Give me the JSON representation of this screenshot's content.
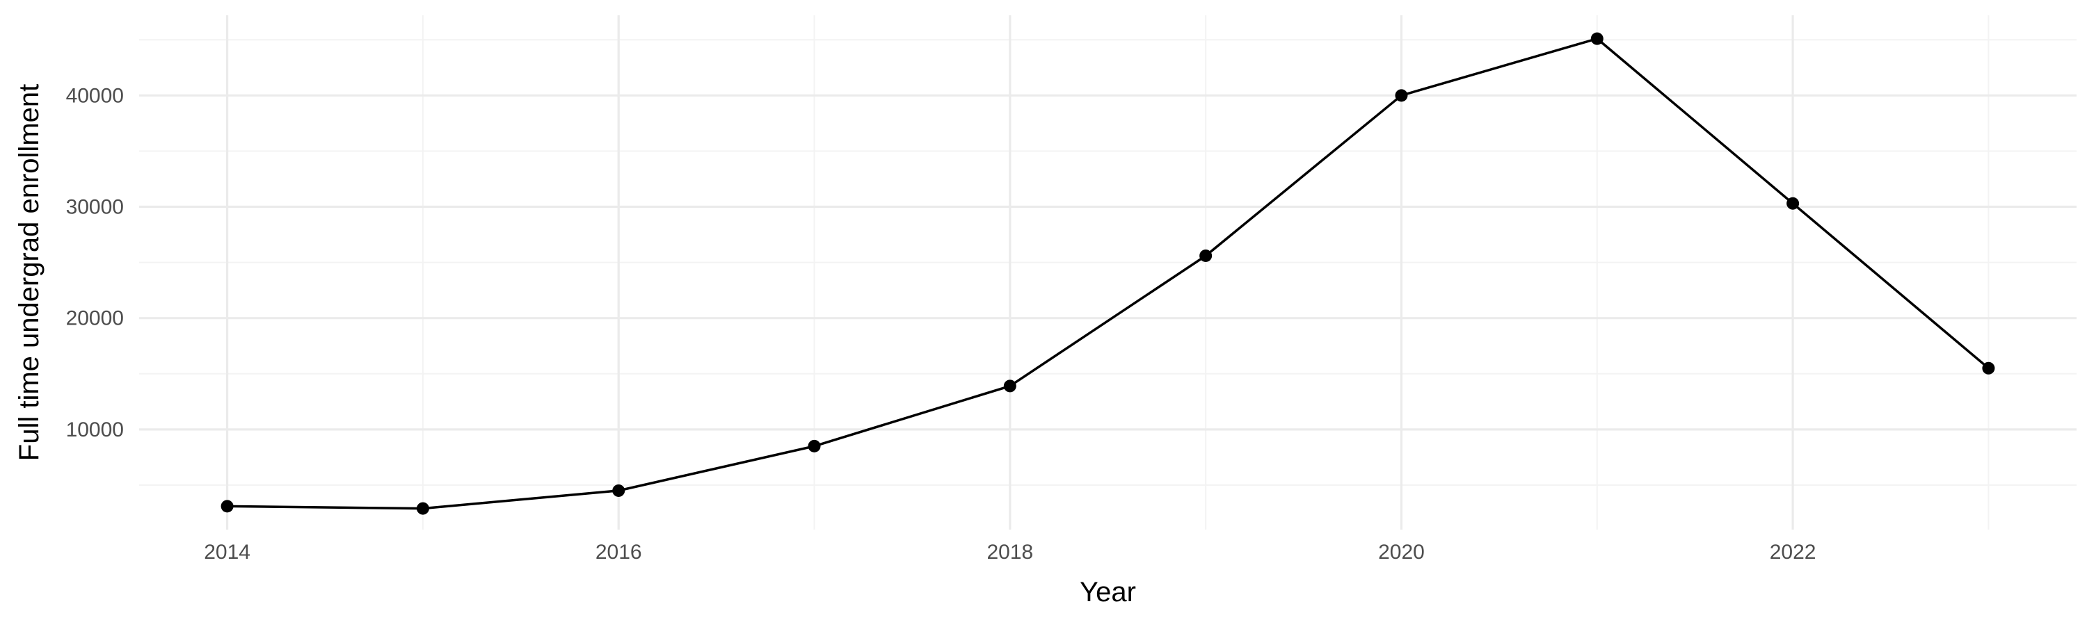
{
  "chart_data": {
    "type": "line",
    "title": "",
    "xlabel": "Year",
    "ylabel": "Full time undergrad enrollment",
    "x": [
      2014,
      2015,
      2016,
      2017,
      2018,
      2019,
      2020,
      2021,
      2022,
      2023
    ],
    "series": [
      {
        "values": [
          3100,
          2900,
          4500,
          8500,
          13900,
          25600,
          40000,
          45100,
          30300,
          15500
        ],
        "color": "#000000"
      }
    ],
    "xlim": [
      2013.55,
      2023.45
    ],
    "ylim": [
      1000,
      47200
    ],
    "x_ticks": [
      2014,
      2016,
      2018,
      2020,
      2022
    ],
    "x_tick_labels": [
      "2014",
      "2016",
      "2018",
      "2020",
      "2022"
    ],
    "y_ticks": [
      10000,
      20000,
      30000,
      40000
    ],
    "y_tick_labels": [
      "10000",
      "20000",
      "30000",
      "40000"
    ],
    "grid": true,
    "markers": true,
    "legend": "none"
  }
}
